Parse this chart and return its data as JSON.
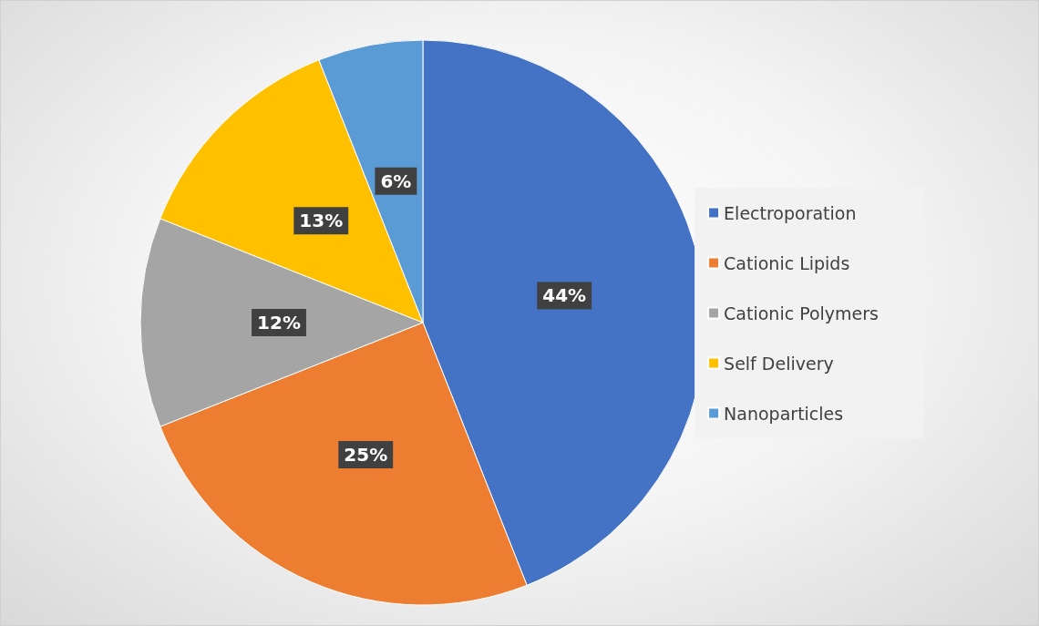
{
  "chart_data": {
    "type": "pie",
    "categories": [
      "Electroporation",
      "Cationic Lipids",
      "Cationic Polymers",
      "Self Delivery",
      "Nanoparticles"
    ],
    "values": [
      44,
      25,
      12,
      13,
      6
    ],
    "colors": [
      "#4472c4",
      "#ed7d31",
      "#a5a5a5",
      "#ffc000",
      "#5b9bd5"
    ],
    "value_labels": [
      "44%",
      "25%",
      "12%",
      "13%",
      "6%"
    ],
    "legend": "right"
  }
}
